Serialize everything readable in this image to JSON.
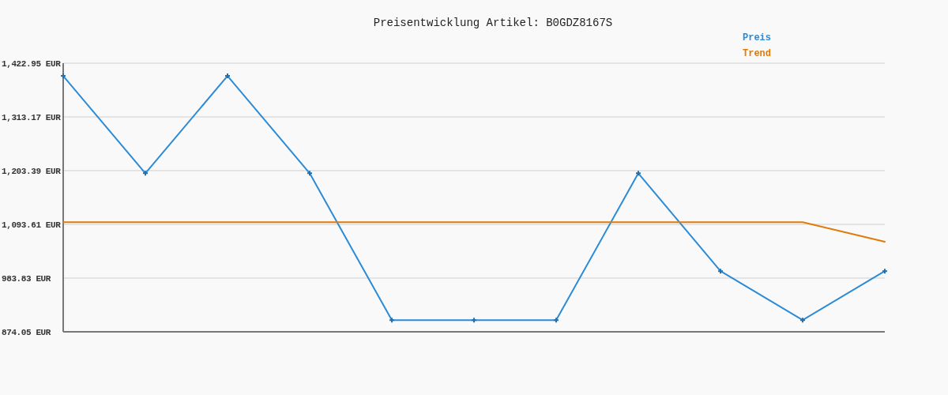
{
  "chart_data": {
    "type": "line",
    "title": "Preisentwicklung Artikel: B0GDZ8167S",
    "categories": [
      null,
      null,
      null,
      null,
      null,
      null,
      null,
      null,
      null,
      null,
      null
    ],
    "series": [
      {
        "name": "Preis",
        "color": "#2b8bd6",
        "marker": "cross",
        "values": [
          1397,
          1198,
          1397,
          1198,
          898,
          898,
          898,
          1198,
          998,
          898,
          998
        ]
      },
      {
        "name": "Trend",
        "color": "#e07b0a",
        "marker": "none",
        "values": [
          1098,
          1098,
          1098,
          1098,
          1098,
          1098,
          1098,
          1098,
          1098,
          1098,
          1058
        ]
      }
    ],
    "ylim": [
      874.05,
      1422.95
    ],
    "yticks": [
      {
        "value": 874.05,
        "label": "874.05 EUR"
      },
      {
        "value": 983.83,
        "label": "983.83 EUR"
      },
      {
        "value": 1093.61,
        "label": "1,093.61 EUR"
      },
      {
        "value": 1203.39,
        "label": "1,203.39 EUR"
      },
      {
        "value": 1313.17,
        "label": "1,313.17 EUR"
      },
      {
        "value": 1422.95,
        "label": "1,422.95 EUR"
      }
    ],
    "grid": "y",
    "legend": "top right",
    "tick_labels": "y"
  }
}
